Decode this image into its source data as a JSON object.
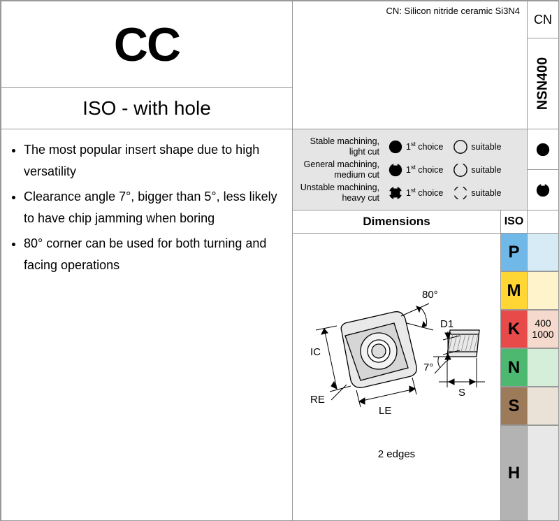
{
  "title": "CC",
  "subtitle": "ISO - with hole",
  "cn_description": "CN: Silicon nitride ceramic Si3N4",
  "cn_code": "CN",
  "grade": "NSN400",
  "bullets": [
    "The most popular insert shape due to high versatility",
    "Clearance angle 7°, bigger than 5°, less likely to have chip jamming when boring",
    "80° corner can be used for both turning and facing operations"
  ],
  "legend": [
    {
      "label1": "Stable machining,",
      "label2": "light cut",
      "choice": "1",
      "suitable": "suitable"
    },
    {
      "label1": "General machining,",
      "label2": "medium cut",
      "choice": "1",
      "suitable": "suitable"
    },
    {
      "label1": "Unstable machining,",
      "label2": "heavy cut",
      "choice": "1",
      "suitable": "suitable"
    }
  ],
  "choice_suffix": " choice",
  "suitable_text": "suitable",
  "dimensions_header": "Dimensions",
  "iso_header": "ISO",
  "diagram": {
    "angle1": "80°",
    "angle2": "7°",
    "labels": {
      "IC": "IC",
      "RE": "RE",
      "LE": "LE",
      "D1": "D1",
      "S": "S"
    },
    "edges_text": "2 edges"
  },
  "iso_classes": [
    {
      "letter": "P",
      "bg": "#6fb8e8",
      "valbg": "#d7ebf7",
      "val1": "",
      "val2": ""
    },
    {
      "letter": "M",
      "bg": "#ffd633",
      "valbg": "#fff3cc",
      "val1": "",
      "val2": ""
    },
    {
      "letter": "K",
      "bg": "#e84a4a",
      "valbg": "#f5d9cc",
      "val1": "400",
      "val2": "1000"
    },
    {
      "letter": "N",
      "bg": "#4db870",
      "valbg": "#d5eed9",
      "val1": "",
      "val2": ""
    },
    {
      "letter": "S",
      "bg": "#9c7a5a",
      "valbg": "#eae2d6",
      "val1": "",
      "val2": ""
    },
    {
      "letter": "H",
      "bg": "#b3b3b3",
      "valbg": "#e8e8e8",
      "val1": "",
      "val2": ""
    }
  ],
  "colors": {
    "legend_bg": "#e5e5e5",
    "border": "#999999"
  }
}
